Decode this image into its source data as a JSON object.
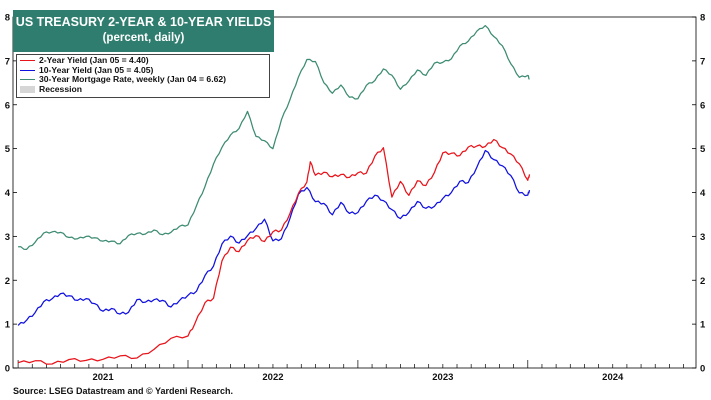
{
  "title": "US TREASURY 2-YEAR & 10-YEAR YIELDS",
  "subtitle": "(percent, daily)",
  "source": "Source: LSEG Datastream and © Yardeni Research.",
  "legend": [
    {
      "label": "2-Year Yield (Jan 05 = 4.40)",
      "color": "#e8141b",
      "kind": "line"
    },
    {
      "label": "10-Year Yield (Jan 05 = 4.05)",
      "color": "#1010e0",
      "kind": "line"
    },
    {
      "label": "30-Year Mortgage Rate, weekly (Jan 04 = 6.62)",
      "color": "#3d8b73",
      "kind": "line"
    },
    {
      "label": "Recession",
      "color": "#d6d6d6",
      "kind": "box"
    }
  ],
  "chart_data": {
    "type": "line",
    "xlabel": "",
    "ylabel": "",
    "xlim": [
      2020.97,
      2024.99
    ],
    "ylim": [
      0,
      8
    ],
    "y_ticks": [
      0,
      1,
      2,
      3,
      4,
      5,
      6,
      7,
      8
    ],
    "x_year_labels": [
      "2021",
      "2022",
      "2023",
      "2024"
    ],
    "grid": false,
    "series": [
      {
        "name": "2-Year Yield (Jan 05 = 4.40)",
        "color": "#e8141b",
        "x": [
          2021.0,
          2021.1,
          2021.2,
          2021.3,
          2021.4,
          2021.5,
          2021.6,
          2021.7,
          2021.8,
          2021.9,
          2022.0,
          2022.04,
          2022.1,
          2022.15,
          2022.2,
          2022.25,
          2022.3,
          2022.35,
          2022.4,
          2022.45,
          2022.5,
          2022.55,
          2022.6,
          2022.65,
          2022.7,
          2022.72,
          2022.75,
          2022.8,
          2022.85,
          2022.9,
          2022.95,
          2023.0,
          2023.05,
          2023.1,
          2023.15,
          2023.2,
          2023.25,
          2023.3,
          2023.35,
          2023.4,
          2023.45,
          2023.5,
          2023.55,
          2023.6,
          2023.65,
          2023.7,
          2023.75,
          2023.8,
          2023.85,
          2023.9,
          2023.95,
          2024.0,
          2024.01
        ],
        "y": [
          0.12,
          0.12,
          0.15,
          0.16,
          0.16,
          0.25,
          0.22,
          0.25,
          0.45,
          0.62,
          0.78,
          1.0,
          1.45,
          1.65,
          2.4,
          2.75,
          2.7,
          2.85,
          3.05,
          2.9,
          3.05,
          3.2,
          3.5,
          3.95,
          4.3,
          4.65,
          4.4,
          4.5,
          4.3,
          4.45,
          4.35,
          4.4,
          4.5,
          4.8,
          5.0,
          3.95,
          4.2,
          3.95,
          4.3,
          4.1,
          4.5,
          4.9,
          4.85,
          4.9,
          5.0,
          5.05,
          5.1,
          5.15,
          5.05,
          4.9,
          4.6,
          4.33,
          4.4
        ]
      },
      {
        "name": "10-Year Yield (Jan 05 = 4.05)",
        "color": "#1010e0",
        "x": [
          2021.0,
          2021.05,
          2021.1,
          2021.15,
          2021.2,
          2021.25,
          2021.3,
          2021.35,
          2021.4,
          2021.45,
          2021.5,
          2021.55,
          2021.6,
          2021.65,
          2021.7,
          2021.75,
          2021.8,
          2021.85,
          2021.9,
          2021.95,
          2022.0,
          2022.05,
          2022.1,
          2022.15,
          2022.2,
          2022.25,
          2022.3,
          2022.35,
          2022.4,
          2022.45,
          2022.5,
          2022.55,
          2022.6,
          2022.65,
          2022.7,
          2022.75,
          2022.8,
          2022.85,
          2022.9,
          2022.95,
          2023.0,
          2023.05,
          2023.1,
          2023.15,
          2023.2,
          2023.25,
          2023.3,
          2023.35,
          2023.4,
          2023.45,
          2023.5,
          2023.55,
          2023.6,
          2023.65,
          2023.7,
          2023.75,
          2023.8,
          2023.85,
          2023.9,
          2023.95,
          2024.0,
          2024.01
        ],
        "y": [
          0.92,
          1.1,
          1.3,
          1.45,
          1.62,
          1.7,
          1.6,
          1.6,
          1.55,
          1.45,
          1.35,
          1.3,
          1.25,
          1.3,
          1.5,
          1.55,
          1.55,
          1.5,
          1.45,
          1.5,
          1.65,
          1.8,
          2.05,
          2.35,
          2.85,
          2.95,
          2.9,
          3.0,
          3.15,
          3.45,
          2.85,
          2.95,
          3.45,
          3.9,
          4.15,
          3.8,
          3.7,
          3.55,
          3.75,
          3.5,
          3.6,
          3.75,
          3.95,
          3.85,
          3.55,
          3.45,
          3.55,
          3.75,
          3.7,
          3.65,
          3.85,
          4.05,
          4.2,
          4.25,
          4.6,
          4.9,
          4.8,
          4.6,
          4.35,
          4.05,
          3.9,
          4.05
        ]
      },
      {
        "name": "30-Year Mortgage Rate, weekly (Jan 04 = 6.62)",
        "color": "#3d8b73",
        "x": [
          2021.0,
          2021.05,
          2021.1,
          2021.15,
          2021.2,
          2021.25,
          2021.3,
          2021.35,
          2021.4,
          2021.45,
          2021.5,
          2021.55,
          2021.6,
          2021.65,
          2021.7,
          2021.75,
          2021.8,
          2021.85,
          2021.9,
          2021.95,
          2022.0,
          2022.05,
          2022.1,
          2022.15,
          2022.2,
          2022.25,
          2022.3,
          2022.35,
          2022.4,
          2022.45,
          2022.5,
          2022.55,
          2022.6,
          2022.65,
          2022.7,
          2022.75,
          2022.8,
          2022.85,
          2022.9,
          2022.95,
          2023.0,
          2023.05,
          2023.1,
          2023.15,
          2023.2,
          2023.25,
          2023.3,
          2023.35,
          2023.4,
          2023.45,
          2023.5,
          2023.55,
          2023.6,
          2023.65,
          2023.7,
          2023.75,
          2023.8,
          2023.85,
          2023.9,
          2023.95,
          2024.0,
          2024.01
        ],
        "y": [
          2.72,
          2.75,
          2.85,
          3.05,
          3.15,
          3.05,
          2.98,
          2.98,
          2.95,
          3.0,
          2.9,
          2.85,
          2.88,
          3.0,
          3.05,
          3.1,
          3.1,
          3.05,
          3.12,
          3.18,
          3.3,
          3.7,
          4.1,
          4.7,
          5.0,
          5.3,
          5.5,
          5.8,
          5.3,
          5.2,
          4.95,
          5.7,
          6.1,
          6.6,
          7.08,
          6.95,
          6.5,
          6.3,
          6.4,
          6.2,
          6.15,
          6.4,
          6.6,
          6.8,
          6.65,
          6.4,
          6.5,
          6.8,
          6.7,
          6.9,
          7.0,
          7.05,
          7.3,
          7.5,
          7.65,
          7.79,
          7.6,
          7.3,
          6.95,
          6.65,
          6.62,
          6.62
        ]
      }
    ]
  }
}
